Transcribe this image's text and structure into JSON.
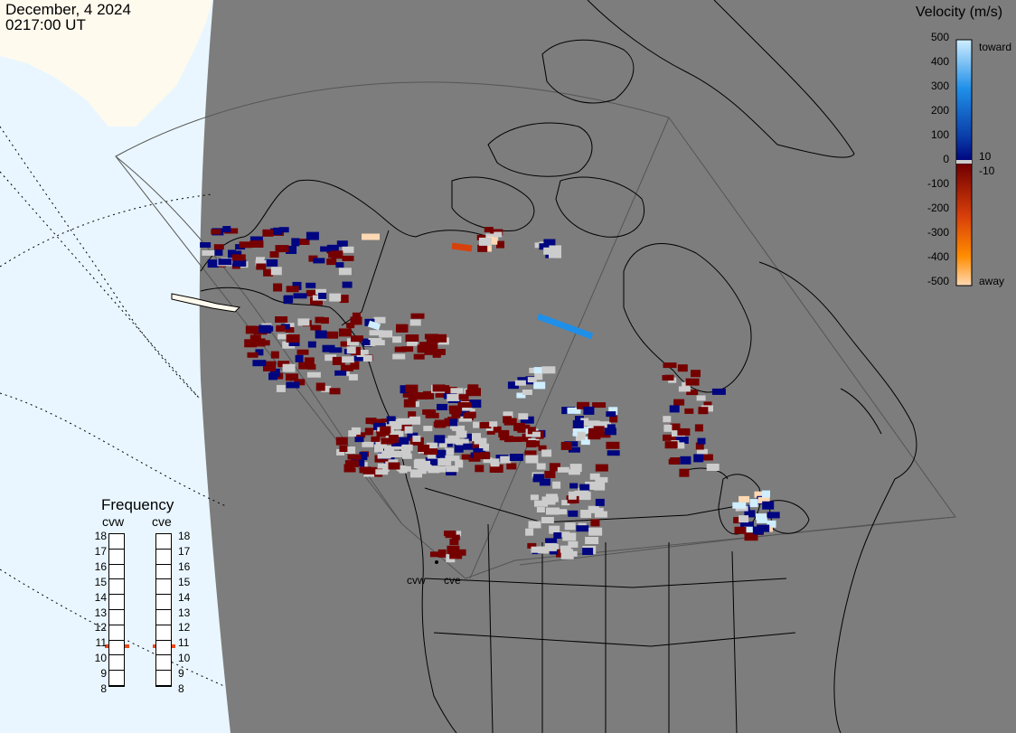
{
  "header": {
    "date": "December, 4 2024",
    "time": "0217:00 UT"
  },
  "radars": [
    {
      "name": "cvw"
    },
    {
      "name": "cve"
    }
  ],
  "colorbar": {
    "title": "Velocity (m/s)",
    "ticks": [
      "500",
      "400",
      "300",
      "200",
      "100",
      "0",
      "-100",
      "-200",
      "-300",
      "-400",
      "-500"
    ],
    "toward_label": "toward",
    "away_label": "away",
    "threshold_pos": "10",
    "threshold_neg": "-10",
    "colors": {
      "toward_max": "#cfeeff",
      "toward_mid": "#1f8fe8",
      "toward_low": "#0a3aa8",
      "toward_min": "#00067f",
      "away_min": "#750000",
      "away_mid": "#d8400a",
      "away_high": "#ff8c00",
      "away_max": "#ffd9b3",
      "ground_scatter": "#cccccc"
    }
  },
  "frequency": {
    "title": "Frequency",
    "panels": [
      {
        "name": "cvw",
        "value_mhz": 10.85
      },
      {
        "name": "cve",
        "value_mhz": 10.85
      }
    ],
    "scale": [
      "18",
      "17",
      "16",
      "15",
      "14",
      "13",
      "12",
      "11",
      "10",
      "9",
      "8"
    ]
  }
}
